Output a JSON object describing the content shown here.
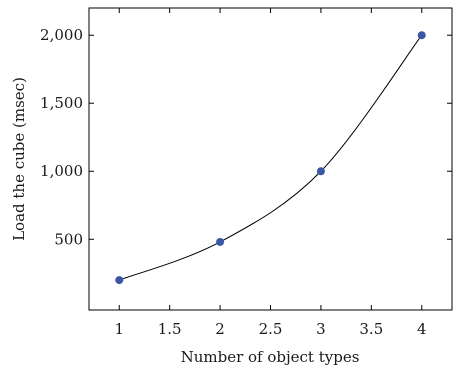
{
  "chart_data": {
    "type": "line",
    "title": "",
    "xlabel": "Number of object types",
    "ylabel": "Load the cube (msec)",
    "xlim": [
      0.7,
      4.3
    ],
    "ylim": [
      -20,
      2200
    ],
    "x_ticks": [
      1,
      1.5,
      2,
      2.5,
      3,
      3.5,
      4
    ],
    "x_tick_labels": [
      "1",
      "1.5",
      "2",
      "2.5",
      "3",
      "3.5",
      "4"
    ],
    "y_ticks": [
      500,
      1000,
      1500,
      2000
    ],
    "y_tick_labels": [
      "500",
      "1,000",
      "1,500",
      "2,000"
    ],
    "grid": false,
    "series": [
      {
        "x": [
          1,
          2,
          3,
          4
        ],
        "y": [
          200,
          480,
          1000,
          2000
        ],
        "color": "#3a57a7",
        "line_color": "#000000",
        "smooth": true
      }
    ]
  }
}
